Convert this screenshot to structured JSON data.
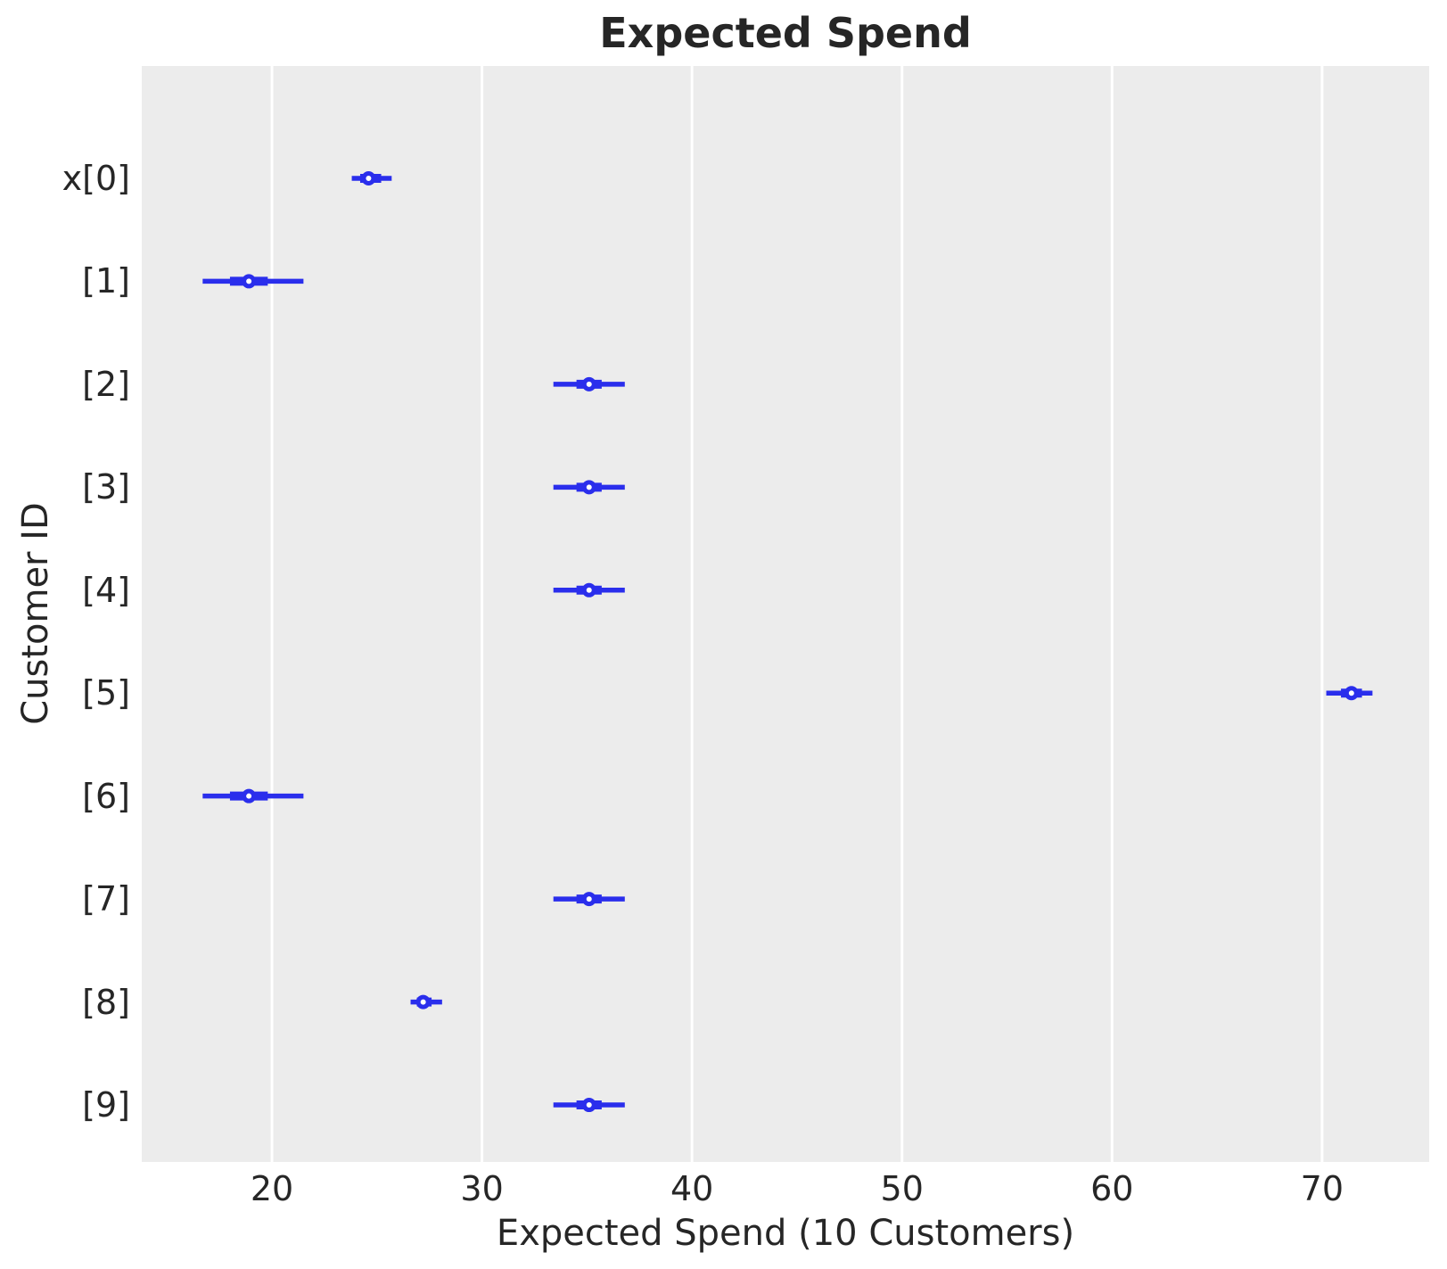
{
  "chart_data": {
    "type": "forest",
    "title": "Expected Spend",
    "xlabel": "Expected Spend (10 Customers)",
    "ylabel": "Customer ID",
    "xlim": [
      13.8,
      75.1
    ],
    "xticks": [
      20,
      30,
      40,
      50,
      60,
      70
    ],
    "grid": "vertical-white-on-gray",
    "legend": "none",
    "rows": [
      {
        "label": "x[0]",
        "median": 24.6,
        "interval_outer": [
          23.8,
          25.7
        ],
        "interval_inner": [
          24.2,
          25.2
        ]
      },
      {
        "label": "[1]",
        "median": 18.9,
        "interval_outer": [
          16.7,
          21.5
        ],
        "interval_inner": [
          18.0,
          19.8
        ]
      },
      {
        "label": "[2]",
        "median": 35.1,
        "interval_outer": [
          33.4,
          36.8
        ],
        "interval_inner": [
          34.5,
          35.7
        ]
      },
      {
        "label": "[3]",
        "median": 35.1,
        "interval_outer": [
          33.4,
          36.8
        ],
        "interval_inner": [
          34.5,
          35.7
        ]
      },
      {
        "label": "[4]",
        "median": 35.1,
        "interval_outer": [
          33.4,
          36.8
        ],
        "interval_inner": [
          34.5,
          35.7
        ]
      },
      {
        "label": "[5]",
        "median": 71.4,
        "interval_outer": [
          70.2,
          72.4
        ],
        "interval_inner": [
          70.9,
          71.9
        ]
      },
      {
        "label": "[6]",
        "median": 18.9,
        "interval_outer": [
          16.7,
          21.5
        ],
        "interval_inner": [
          18.0,
          19.8
        ]
      },
      {
        "label": "[7]",
        "median": 35.1,
        "interval_outer": [
          33.4,
          36.8
        ],
        "interval_inner": [
          34.5,
          35.7
        ]
      },
      {
        "label": "[8]",
        "median": 27.2,
        "interval_outer": [
          26.6,
          28.1
        ],
        "interval_inner": [
          26.9,
          27.6
        ]
      },
      {
        "label": "[9]",
        "median": 35.1,
        "interval_outer": [
          33.4,
          36.8
        ],
        "interval_inner": [
          34.5,
          35.7
        ]
      }
    ],
    "colors": {
      "series": "#2a2eec",
      "marker_face": "#ffffff",
      "plot_background": "#ececec",
      "gridline": "#ffffff",
      "text": "#262626",
      "figure_background": "#ffffff"
    },
    "row_layout": {
      "first_row_frac": 0.1025,
      "row_step_frac": 0.09394
    }
  }
}
